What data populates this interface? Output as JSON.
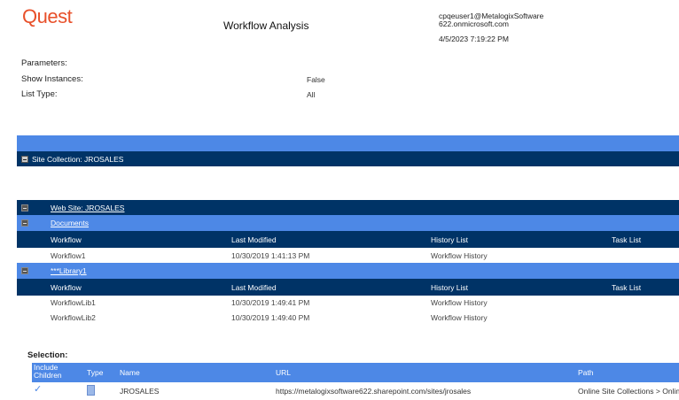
{
  "header": {
    "logo": "Quest",
    "title": "Workflow Analysis",
    "user_line1": "cpqeuser1@MetalogixSoftware",
    "user_line2": "622.onmicrosoft.com",
    "timestamp": "4/5/2023 7:19:22 PM"
  },
  "parameters": {
    "label": "Parameters:",
    "show_instances_label": "Show Instances:",
    "show_instances_value": "False",
    "list_type_label": "List Type:",
    "list_type_value": "All"
  },
  "site_collection": "Site Collection: JROSALES",
  "web_site": "Web Site: JROSALES",
  "columns": [
    "Workflow",
    "Last Modified",
    "History List",
    "Task List"
  ],
  "lists": [
    {
      "name": "Documents",
      "rows": [
        [
          "Workflow1",
          "10/30/2019 1:41:13 PM",
          "Workflow History",
          ""
        ]
      ]
    },
    {
      "name": "***Library1",
      "rows": [
        [
          "WorkflowLib1",
          "10/30/2019 1:49:41 PM",
          "Workflow History",
          ""
        ],
        [
          "WorkflowLib2",
          "10/30/2019 1:49:40 PM",
          "Workflow History",
          ""
        ]
      ]
    }
  ],
  "selection": {
    "label": "Selection:",
    "columns": [
      "Include Children",
      "Type",
      "Name",
      "URL",
      "Path"
    ],
    "row": {
      "include_children": "✓",
      "name": "JROSALES",
      "url": "https://metalogixsoftware622.sharepoint.com/sites/jrosales",
      "path": "Online Site Collections > Online"
    }
  },
  "colors": {
    "accent_blue": "#4d88e6",
    "dark_navy": "#003366",
    "logo": "#e8502a"
  }
}
